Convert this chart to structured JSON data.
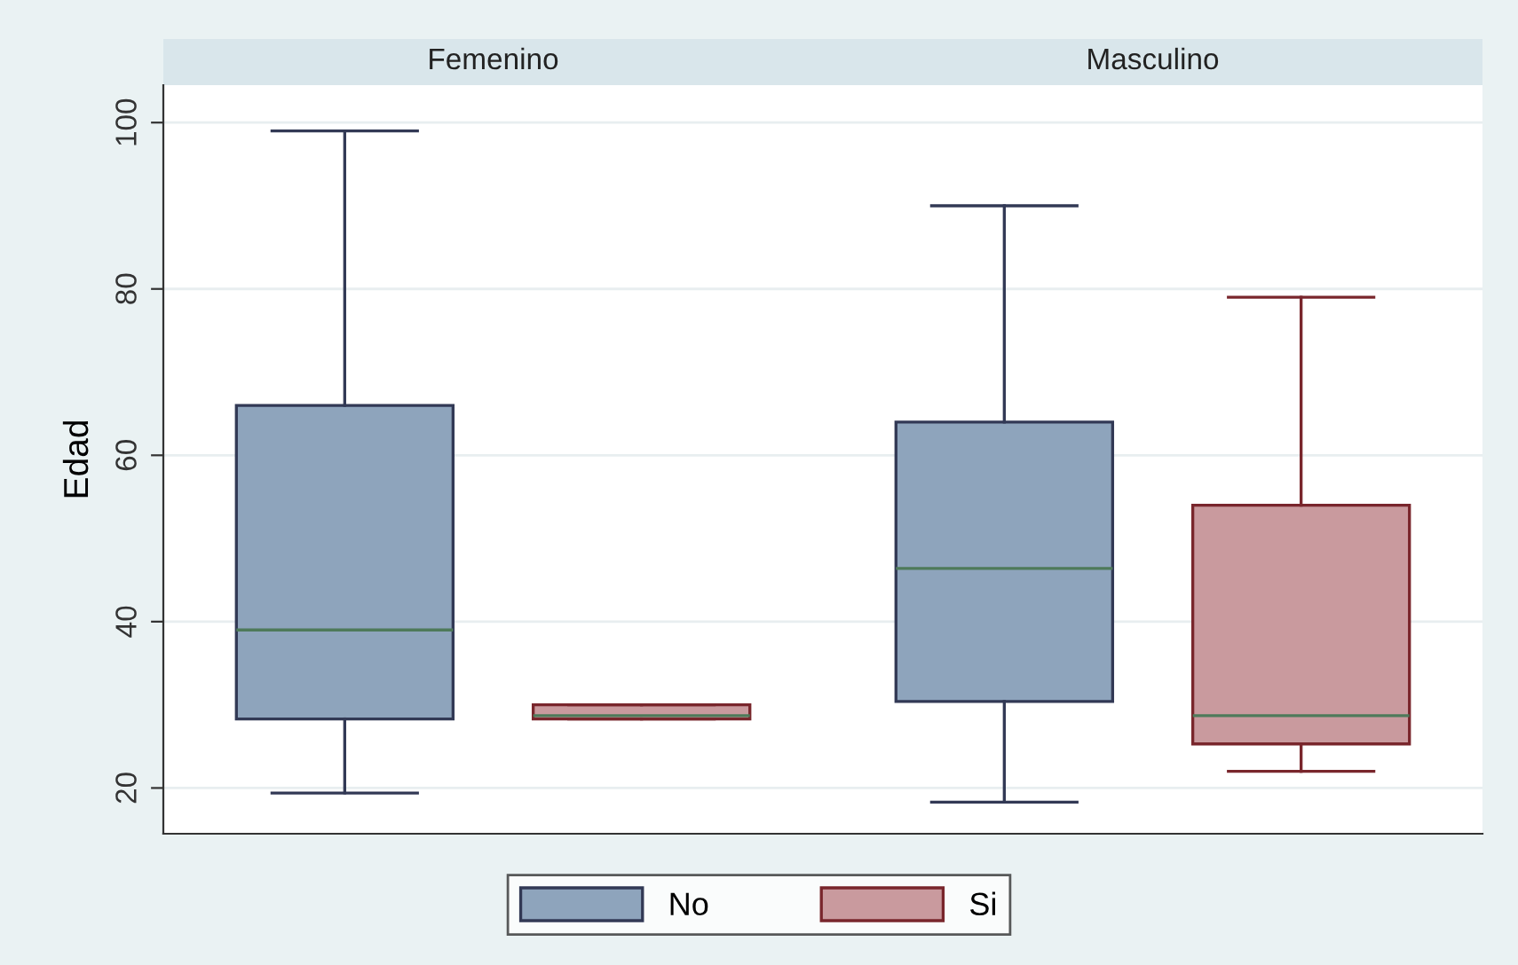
{
  "chart_data": {
    "type": "box",
    "ylabel": "Edad",
    "categories": [
      "Femenino",
      "Masculino"
    ],
    "ylim": [
      14.5,
      104.5
    ],
    "yticks": [
      20,
      40,
      60,
      80,
      100
    ],
    "grid": "y",
    "legend": "bottom",
    "series": [
      {
        "name": "No",
        "color": "#8ea4bc",
        "boxes": [
          {
            "low": 19.4,
            "q1": 28.3,
            "median": 39,
            "q3": 66,
            "high": 99
          },
          {
            "low": 18.3,
            "q1": 30.4,
            "median": 46.4,
            "q3": 64,
            "high": 90
          }
        ]
      },
      {
        "name": "Si",
        "color": "#c99a9e",
        "boxes": [
          {
            "low": 28.3,
            "q1": 28.3,
            "median": 28.7,
            "q3": 30,
            "high": 30
          },
          {
            "low": 22,
            "q1": 25.3,
            "median": 28.7,
            "q3": 54,
            "high": 79
          }
        ]
      }
    ]
  }
}
